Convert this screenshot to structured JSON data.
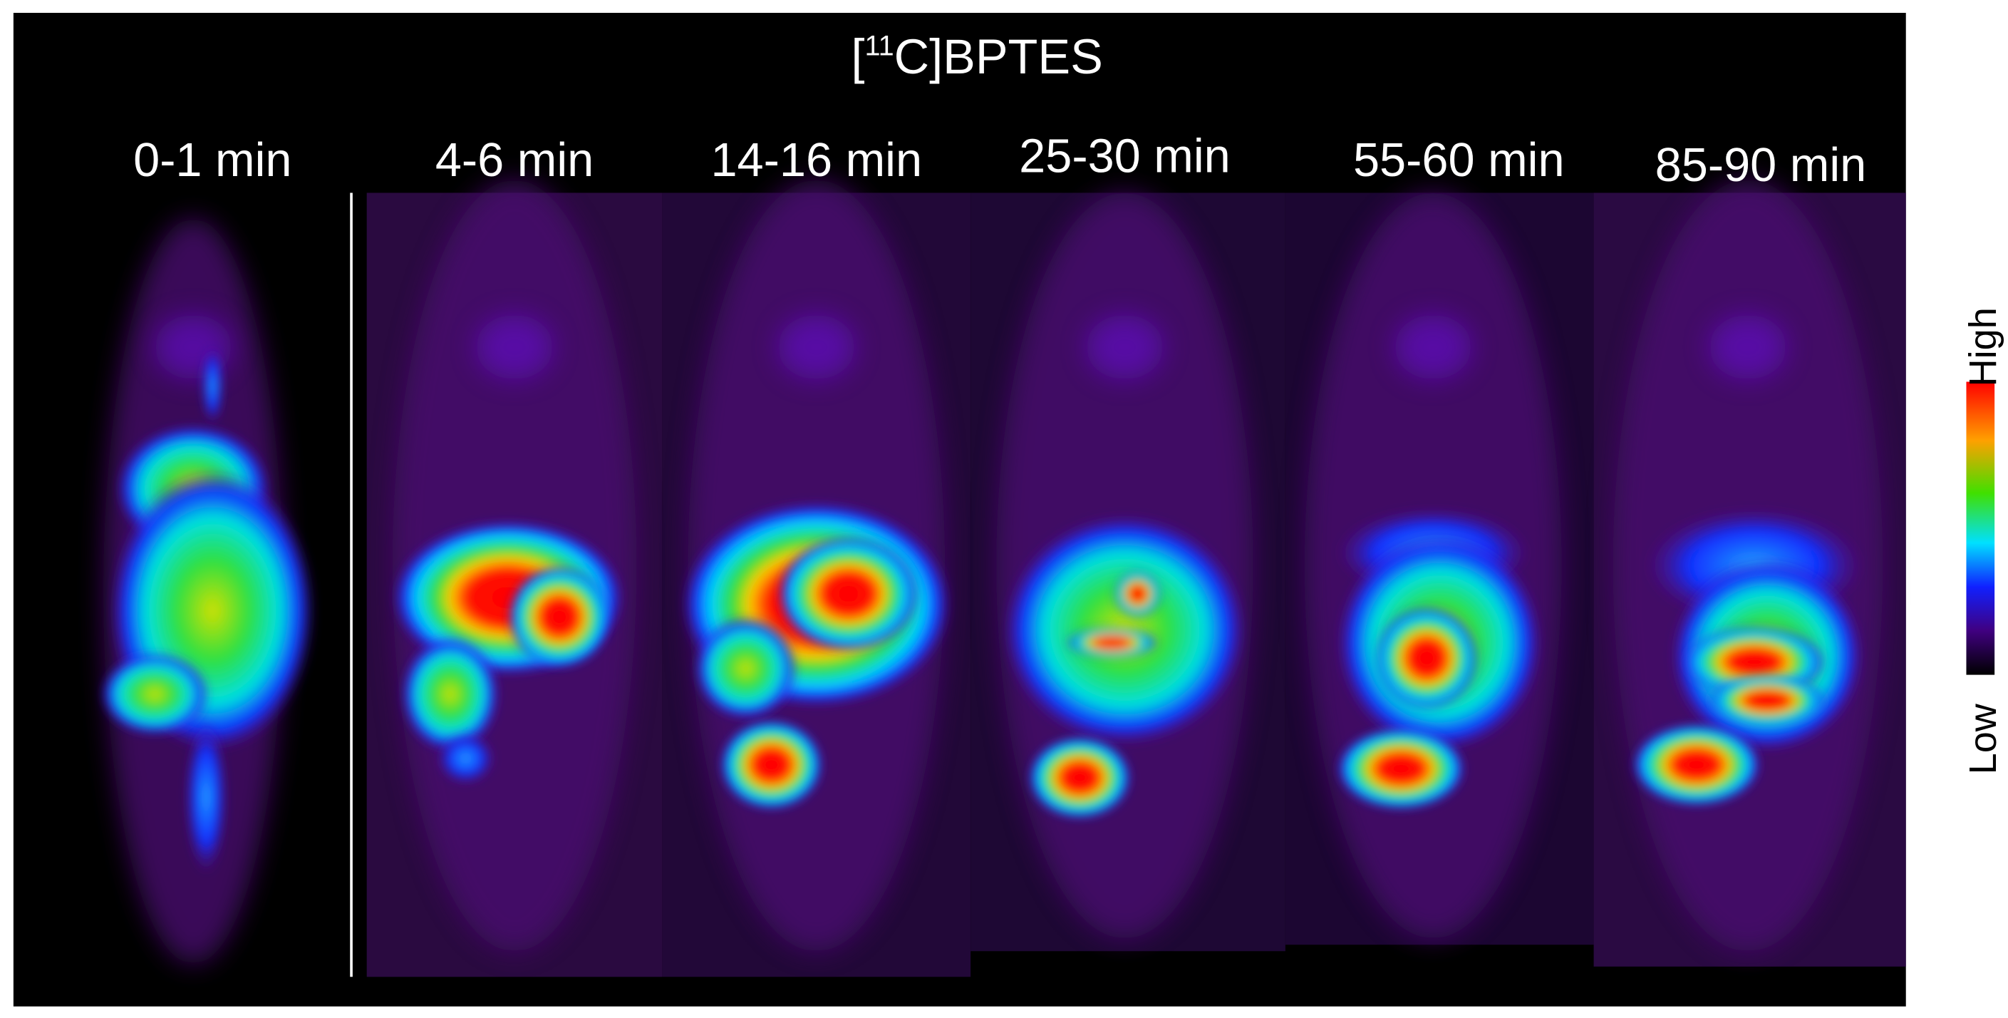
{
  "title": {
    "open": "[",
    "superscript": "11",
    "rest": "C]BPTES"
  },
  "panels": [
    {
      "label": "0-1 min"
    },
    {
      "label": "4-6 min"
    },
    {
      "label": "14-16 min"
    },
    {
      "label": "25-30 min"
    },
    {
      "label": "55-60 min"
    },
    {
      "label": "85-90 min"
    }
  ],
  "colorbar": {
    "high": "High",
    "low": "Low"
  }
}
